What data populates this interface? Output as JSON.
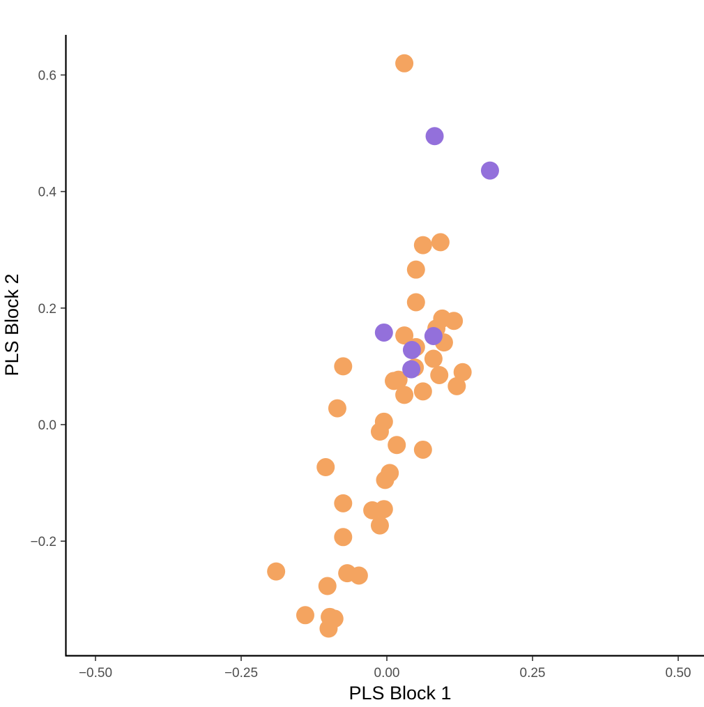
{
  "chart_data": {
    "type": "scatter",
    "xlabel": "PLS Block 1",
    "ylabel": "PLS Block 2",
    "xlim": [
      -0.55,
      0.52
    ],
    "ylim": [
      -0.4,
      0.67
    ],
    "x_ticks": [
      -0.5,
      -0.25,
      0.0,
      0.25,
      0.5
    ],
    "x_tick_labels": [
      "−0.50",
      "−0.25",
      "0.00",
      "0.25",
      "0.50"
    ],
    "y_ticks": [
      -0.2,
      0.0,
      0.2,
      0.4,
      0.6
    ],
    "y_tick_labels": [
      "−0.2",
      "0.0",
      "0.2",
      "0.4",
      "0.6"
    ],
    "grid": false,
    "legend": "none",
    "series": [
      {
        "color": "#F4A460",
        "points": [
          {
            "x": 0.03,
            "y": 0.62
          },
          {
            "x": 0.092,
            "y": 0.313
          },
          {
            "x": 0.062,
            "y": 0.308
          },
          {
            "x": 0.05,
            "y": 0.266
          },
          {
            "x": 0.05,
            "y": 0.21
          },
          {
            "x": 0.095,
            "y": 0.182
          },
          {
            "x": 0.115,
            "y": 0.178
          },
          {
            "x": 0.085,
            "y": 0.165
          },
          {
            "x": 0.03,
            "y": 0.153
          },
          {
            "x": 0.05,
            "y": 0.133
          },
          {
            "x": 0.098,
            "y": 0.141
          },
          {
            "x": 0.08,
            "y": 0.113
          },
          {
            "x": -0.075,
            "y": 0.1
          },
          {
            "x": 0.048,
            "y": 0.098
          },
          {
            "x": 0.13,
            "y": 0.09
          },
          {
            "x": 0.09,
            "y": 0.085
          },
          {
            "x": 0.012,
            "y": 0.075
          },
          {
            "x": 0.02,
            "y": 0.077
          },
          {
            "x": 0.12,
            "y": 0.066
          },
          {
            "x": 0.062,
            "y": 0.057
          },
          {
            "x": 0.03,
            "y": 0.051
          },
          {
            "x": -0.085,
            "y": 0.028
          },
          {
            "x": -0.005,
            "y": 0.005
          },
          {
            "x": -0.012,
            "y": -0.012
          },
          {
            "x": 0.017,
            "y": -0.035
          },
          {
            "x": 0.062,
            "y": -0.043
          },
          {
            "x": -0.105,
            "y": -0.073
          },
          {
            "x": 0.005,
            "y": -0.083
          },
          {
            "x": -0.003,
            "y": -0.095
          },
          {
            "x": -0.075,
            "y": -0.135
          },
          {
            "x": -0.025,
            "y": -0.147
          },
          {
            "x": -0.005,
            "y": -0.145
          },
          {
            "x": -0.012,
            "y": -0.173
          },
          {
            "x": -0.075,
            "y": -0.193
          },
          {
            "x": -0.19,
            "y": -0.252
          },
          {
            "x": -0.068,
            "y": -0.255
          },
          {
            "x": -0.048,
            "y": -0.259
          },
          {
            "x": -0.102,
            "y": -0.277
          },
          {
            "x": -0.14,
            "y": -0.327
          },
          {
            "x": -0.098,
            "y": -0.33
          },
          {
            "x": -0.09,
            "y": -0.333
          },
          {
            "x": -0.1,
            "y": -0.35
          }
        ]
      },
      {
        "color": "#9370DB",
        "points": [
          {
            "x": 0.082,
            "y": 0.495
          },
          {
            "x": 0.177,
            "y": 0.436
          },
          {
            "x": -0.005,
            "y": 0.158
          },
          {
            "x": 0.08,
            "y": 0.152
          },
          {
            "x": 0.043,
            "y": 0.128
          },
          {
            "x": 0.042,
            "y": 0.095
          }
        ]
      }
    ]
  }
}
